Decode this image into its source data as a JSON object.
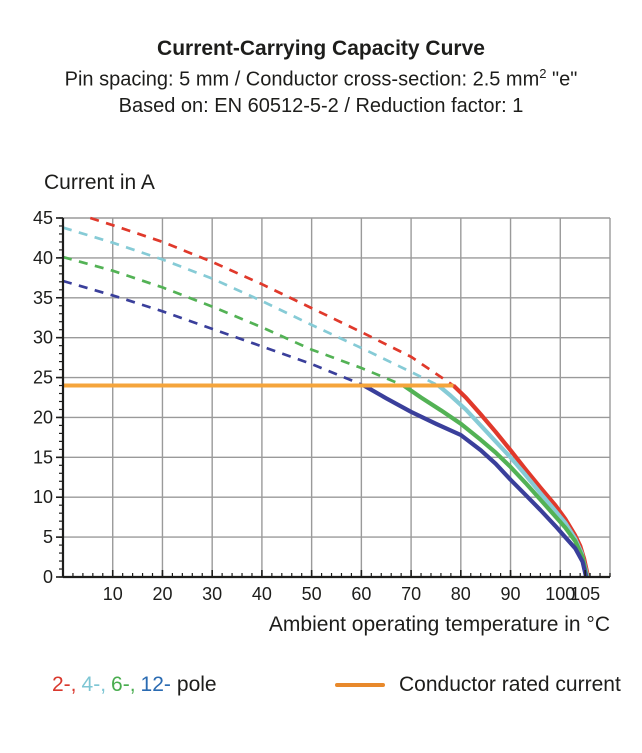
{
  "header": {
    "subtitle_pre": "Pin spacing: 5 mm / Conductor cross-section: 2.5 mm",
    "subtitle_sup": "2",
    "subtitle_post": " \"e\"",
    "basis": "Based on: EN 60512-5-2 / Reduction factor: 1"
  },
  "legend": {
    "poles": [
      {
        "label": "2-,",
        "color": "#D9382D"
      },
      {
        "label": "4-,",
        "color": "#7EC6D4"
      },
      {
        "label": "6-,",
        "color": "#49AD4F"
      },
      {
        "label": "12-",
        "color": "#2A6BB2"
      }
    ],
    "pole_suffix": "pole",
    "rated_label": "Conductor rated current",
    "rated_swatch_color": "#E8892B"
  },
  "chart_data": {
    "type": "line",
    "title": "Current-Carrying Capacity Curve",
    "xlabel": "Ambient operating temperature in °C",
    "ylabel": "Current in A",
    "xlim": [
      0,
      110
    ],
    "ylim": [
      0,
      45
    ],
    "x_tick_labels": [
      10,
      20,
      30,
      40,
      50,
      60,
      70,
      80,
      90,
      100,
      105
    ],
    "x_grid_step": 10,
    "x_minor_step": 2,
    "y_tick_step": 5,
    "y_minor_step": 1,
    "grid": true,
    "grid_color": "#9A9A9A",
    "axis_color": "#1D1D1B",
    "legend_position": "bottom",
    "rated_current": {
      "label": "Conductor rated current",
      "value": 24,
      "x_start": 0,
      "x_end": 78.5,
      "color": "#F5A53C"
    },
    "series": [
      {
        "name": "2-pole",
        "color": "#E0392B",
        "dashed": [
          [
            5.5,
            45
          ],
          [
            10,
            44.1
          ],
          [
            20,
            42.0
          ],
          [
            30,
            39.5
          ],
          [
            40,
            36.7
          ],
          [
            50,
            33.7
          ],
          [
            60,
            30.7
          ],
          [
            70,
            27.6
          ],
          [
            78.5,
            24
          ]
        ],
        "solid": [
          [
            78.5,
            24
          ],
          [
            81,
            22.5
          ],
          [
            84,
            20.4
          ],
          [
            87,
            18.2
          ],
          [
            90,
            15.9
          ],
          [
            93,
            13.5
          ],
          [
            96,
            11.2
          ],
          [
            99,
            9.0
          ],
          [
            101,
            7.3
          ],
          [
            103,
            5.2
          ],
          [
            104,
            3.9
          ],
          [
            104.8,
            2.3
          ],
          [
            105.6,
            0
          ]
        ]
      },
      {
        "name": "4-pole",
        "color": "#86CBD6",
        "dashed": [
          [
            0,
            43.8
          ],
          [
            10,
            41.9
          ],
          [
            20,
            39.8
          ],
          [
            30,
            37.4
          ],
          [
            40,
            34.6
          ],
          [
            50,
            31.6
          ],
          [
            60,
            28.7
          ],
          [
            70,
            25.7
          ],
          [
            75.5,
            24
          ]
        ],
        "solid": [
          [
            75.5,
            24
          ],
          [
            78,
            22.7
          ],
          [
            81,
            21.0
          ],
          [
            84,
            19.0
          ],
          [
            87,
            17.0
          ],
          [
            90,
            15.0
          ],
          [
            93,
            12.8
          ],
          [
            96,
            10.5
          ],
          [
            99,
            8.3
          ],
          [
            101,
            6.8
          ],
          [
            103,
            4.8
          ],
          [
            104.3,
            3.0
          ],
          [
            105.45,
            0
          ]
        ]
      },
      {
        "name": "6-pole",
        "color": "#53B255",
        "dashed": [
          [
            0,
            40.1
          ],
          [
            10,
            38.4
          ],
          [
            20,
            36.3
          ],
          [
            30,
            33.9
          ],
          [
            40,
            31.3
          ],
          [
            50,
            28.5
          ],
          [
            60,
            26.2
          ],
          [
            68.5,
            24
          ]
        ],
        "solid": [
          [
            68.5,
            24
          ],
          [
            72,
            22.5
          ],
          [
            76,
            20.9
          ],
          [
            80,
            19.2
          ],
          [
            84,
            17.2
          ],
          [
            87,
            15.6
          ],
          [
            90,
            13.8
          ],
          [
            93,
            11.8
          ],
          [
            96,
            9.7
          ],
          [
            99,
            7.6
          ],
          [
            101,
            6.2
          ],
          [
            103,
            4.5
          ],
          [
            104.5,
            2.5
          ],
          [
            105.3,
            0
          ]
        ]
      },
      {
        "name": "12-pole",
        "color": "#3A3F9B",
        "dashed": [
          [
            0,
            37.1
          ],
          [
            10,
            35.3
          ],
          [
            20,
            33.3
          ],
          [
            30,
            31.1
          ],
          [
            40,
            28.9
          ],
          [
            50,
            26.7
          ],
          [
            60.5,
            24
          ]
        ],
        "solid": [
          [
            60.5,
            24
          ],
          [
            65,
            22.4
          ],
          [
            70,
            20.7
          ],
          [
            75,
            19.2
          ],
          [
            80,
            17.8
          ],
          [
            84,
            15.9
          ],
          [
            87,
            14.2
          ],
          [
            90,
            12.2
          ],
          [
            93,
            10.3
          ],
          [
            96,
            8.4
          ],
          [
            99,
            6.4
          ],
          [
            101,
            5.0
          ],
          [
            103,
            3.6
          ],
          [
            104.5,
            1.9
          ],
          [
            105.2,
            0
          ]
        ]
      }
    ]
  }
}
